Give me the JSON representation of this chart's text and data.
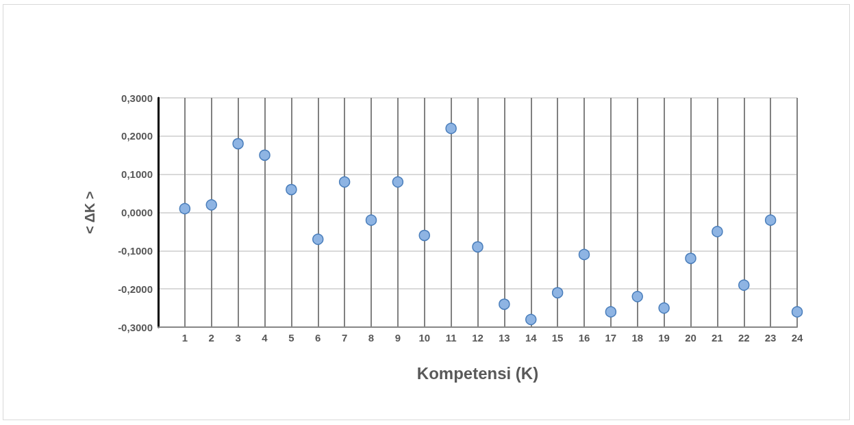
{
  "chart_data": {
    "type": "scatter",
    "xlabel": "Kompetensi (K)",
    "ylabel": "< ΔK >",
    "x": [
      1,
      2,
      3,
      4,
      5,
      6,
      7,
      8,
      9,
      10,
      11,
      12,
      13,
      14,
      15,
      16,
      17,
      18,
      19,
      20,
      21,
      22,
      23,
      24
    ],
    "series": [
      {
        "color": "#8eb4e3",
        "values": [
          0.01,
          0.02,
          0.18,
          0.15,
          0.06,
          -0.07,
          0.08,
          -0.02,
          0.08,
          -0.06,
          0.22,
          -0.09,
          -0.24,
          -0.28,
          -0.21,
          -0.11,
          -0.26,
          -0.22,
          -0.25,
          -0.12,
          -0.05,
          -0.19,
          -0.02,
          -0.26
        ]
      }
    ],
    "xlim": [
      0,
      24
    ],
    "xticks": [
      1,
      2,
      3,
      4,
      5,
      6,
      7,
      8,
      9,
      10,
      11,
      12,
      13,
      14,
      15,
      16,
      17,
      18,
      19,
      20,
      21,
      22,
      23,
      24
    ],
    "ylim": [
      -0.3,
      0.3
    ],
    "yticks": [
      {
        "value": -0.3,
        "label": "-0,3000"
      },
      {
        "value": -0.2,
        "label": "-0,2000"
      },
      {
        "value": -0.1,
        "label": "-0,1000"
      },
      {
        "value": 0,
        "label": "0,0000"
      },
      {
        "value": 0.1,
        "label": "0,1000"
      },
      {
        "value": 0.2,
        "label": "0,2000"
      },
      {
        "value": 0.3,
        "label": "0,3000"
      }
    ],
    "grid": true,
    "marker": "circle"
  }
}
